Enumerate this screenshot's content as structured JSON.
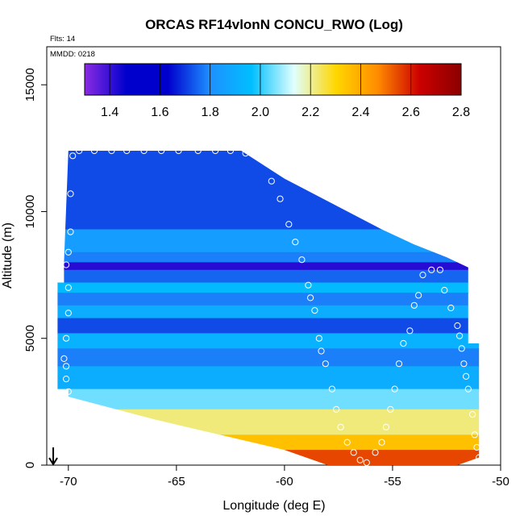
{
  "chart_data": {
    "type": "heatmap",
    "title": "ORCAS RF14vlonN CONCU_RWO (Log)",
    "annotations": [
      "Flts: 14",
      "MMDD: 0218"
    ],
    "xlabel": "Longitude (deg E)",
    "ylabel": "Altitude (m)",
    "xlim": [
      -71,
      -50
    ],
    "ylim": [
      0,
      16500
    ],
    "x_ticks": [
      -70,
      -65,
      -60,
      -55,
      -50
    ],
    "y_ticks": [
      0,
      5000,
      10000,
      15000
    ],
    "x_tick_labels": [
      "-70",
      "-65",
      "-60",
      "-55",
      "-50"
    ],
    "y_tick_labels": [
      "0",
      "5000",
      "10000",
      "15000"
    ],
    "colorbar": {
      "range": [
        1.3,
        2.8
      ],
      "ticks": [
        1.4,
        1.6,
        1.8,
        2.0,
        2.2,
        2.4,
        2.6,
        2.8
      ],
      "tick_labels": [
        "1.4",
        "1.6",
        "1.8",
        "2.0",
        "2.2",
        "2.4",
        "2.6",
        "2.8"
      ],
      "colors": [
        "#8a2be2",
        "#0000cd",
        "#0000cd",
        "#1e90ff",
        "#00bfff",
        "#e0ffff",
        "#ffd700",
        "#ff8c00",
        "#cc0000",
        "#8b0000"
      ]
    },
    "grid": false,
    "domain_outline": [
      [
        -70.0,
        3000
      ],
      [
        -70.5,
        3000
      ],
      [
        -70.5,
        7200
      ],
      [
        -70.2,
        7200
      ],
      [
        -70.2,
        8000
      ],
      [
        -70.0,
        12400
      ],
      [
        -62.0,
        12400
      ],
      [
        -60.0,
        11300
      ],
      [
        -55.5,
        9300
      ],
      [
        -54.0,
        8700
      ],
      [
        -52.5,
        8200
      ],
      [
        -51.5,
        7800
      ],
      [
        -51.5,
        4800
      ],
      [
        -51.0,
        4800
      ],
      [
        -51.0,
        300
      ],
      [
        -52.0,
        0
      ],
      [
        -58.0,
        0
      ],
      [
        -60.0,
        600
      ],
      [
        -63.0,
        1200
      ],
      [
        -66.0,
        1800
      ],
      [
        -70.0,
        2700
      ]
    ],
    "field_bands": [
      {
        "alt": [
          9300,
          12400
        ],
        "value": 1.72
      },
      {
        "alt": [
          8400,
          9300
        ],
        "value": 1.85
      },
      {
        "alt": [
          8000,
          8400
        ],
        "value": 1.78
      },
      {
        "alt": [
          7700,
          8000
        ],
        "value": 1.42
      },
      {
        "alt": [
          7200,
          7700
        ],
        "value": 1.75
      },
      {
        "alt": [
          6800,
          7200
        ],
        "value": 1.95
      },
      {
        "alt": [
          6300,
          6800
        ],
        "value": 1.78
      },
      {
        "alt": [
          5800,
          6300
        ],
        "value": 1.9
      },
      {
        "alt": [
          5200,
          5800
        ],
        "value": 1.72
      },
      {
        "alt": [
          4600,
          5200
        ],
        "value": 1.92
      },
      {
        "alt": [
          3900,
          4600
        ],
        "value": 1.78
      },
      {
        "alt": [
          3000,
          3900
        ],
        "value": 1.9
      },
      {
        "alt": [
          2200,
          3000
        ],
        "value": 2.05
      },
      {
        "alt": [
          1200,
          2200
        ],
        "value": 2.22
      },
      {
        "alt": [
          600,
          1200
        ],
        "value": 2.35
      },
      {
        "alt": [
          0,
          600
        ],
        "value": 2.55
      }
    ],
    "flight_track": [
      [
        -70.0,
        2900
      ],
      [
        -70.1,
        3400
      ],
      [
        -70.1,
        3900
      ],
      [
        -70.2,
        4200
      ],
      [
        -70.1,
        5000
      ],
      [
        -70.0,
        6000
      ],
      [
        -70.0,
        7000
      ],
      [
        -70.1,
        7900
      ],
      [
        -70.0,
        8400
      ],
      [
        -69.9,
        9200
      ],
      [
        -69.9,
        10700
      ],
      [
        -69.8,
        12200
      ],
      [
        -69.5,
        12400
      ],
      [
        -68.8,
        12400
      ],
      [
        -68.0,
        12400
      ],
      [
        -67.3,
        12400
      ],
      [
        -66.5,
        12400
      ],
      [
        -65.7,
        12400
      ],
      [
        -64.9,
        12400
      ],
      [
        -64.0,
        12400
      ],
      [
        -63.2,
        12400
      ],
      [
        -62.5,
        12400
      ],
      [
        -61.8,
        12300
      ],
      [
        -61.1,
        12100
      ],
      [
        -60.6,
        11200
      ],
      [
        -60.2,
        10500
      ],
      [
        -59.8,
        9500
      ],
      [
        -59.5,
        8800
      ],
      [
        -59.2,
        8100
      ],
      [
        -58.9,
        7100
      ],
      [
        -58.8,
        6600
      ],
      [
        -58.6,
        6100
      ],
      [
        -58.4,
        5000
      ],
      [
        -58.3,
        4500
      ],
      [
        -58.1,
        4000
      ],
      [
        -57.8,
        3000
      ],
      [
        -57.6,
        2200
      ],
      [
        -57.4,
        1500
      ],
      [
        -57.1,
        900
      ],
      [
        -56.8,
        500
      ],
      [
        -56.5,
        200
      ],
      [
        -56.2,
        100
      ],
      [
        -55.8,
        500
      ],
      [
        -55.5,
        900
      ],
      [
        -55.3,
        1500
      ],
      [
        -55.1,
        2200
      ],
      [
        -54.9,
        3000
      ],
      [
        -54.7,
        4000
      ],
      [
        -54.5,
        4800
      ],
      [
        -54.2,
        5300
      ],
      [
        -54.0,
        6300
      ],
      [
        -53.8,
        6700
      ],
      [
        -53.6,
        7500
      ],
      [
        -53.2,
        7700
      ],
      [
        -52.8,
        7700
      ],
      [
        -52.6,
        6900
      ],
      [
        -52.3,
        6200
      ],
      [
        -52.0,
        5500
      ],
      [
        -51.9,
        5100
      ],
      [
        -51.8,
        4600
      ],
      [
        -51.7,
        4000
      ],
      [
        -51.6,
        3500
      ],
      [
        -51.5,
        3000
      ],
      [
        -51.3,
        2000
      ],
      [
        -51.2,
        1200
      ],
      [
        -51.1,
        700
      ],
      [
        -51.0,
        300
      ]
    ],
    "marker": {
      "x": -70.7,
      "y": 0,
      "symbol": "arrow"
    }
  }
}
